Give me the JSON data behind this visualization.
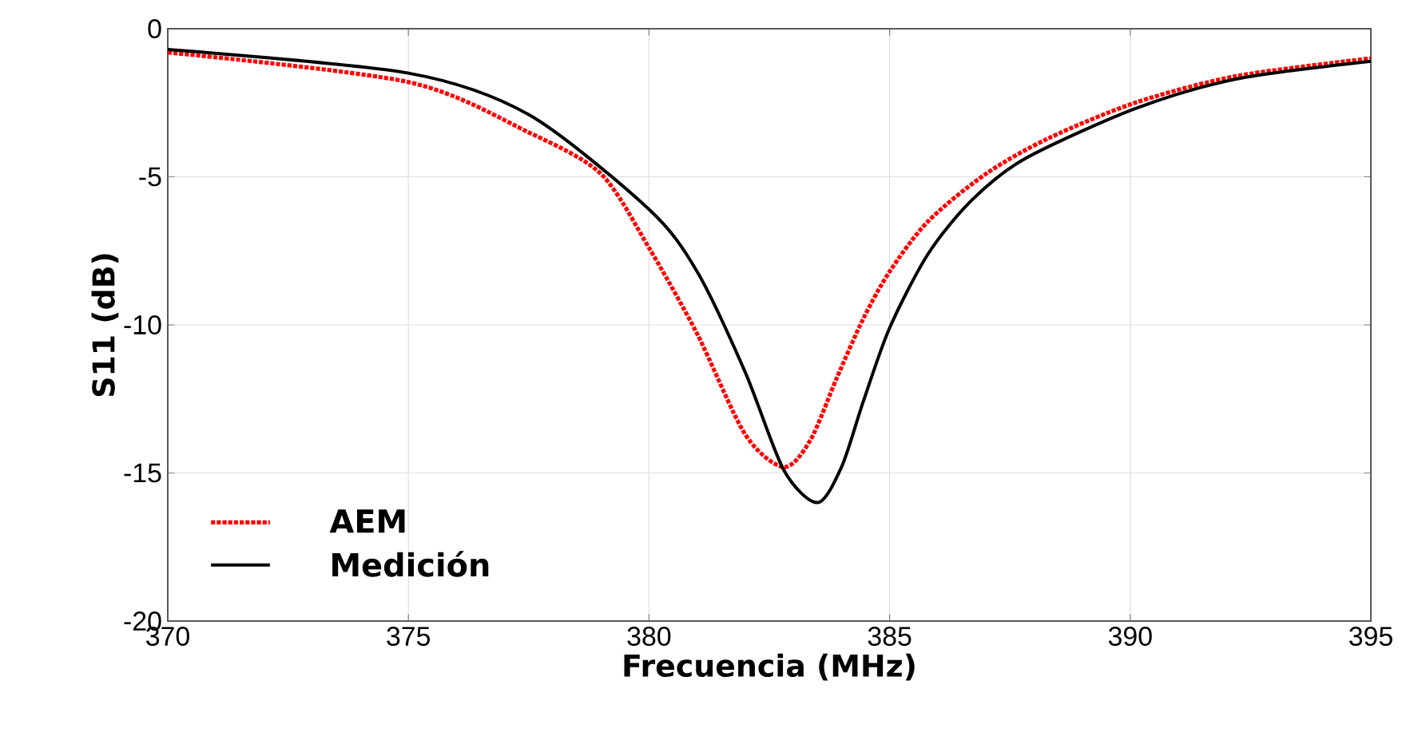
{
  "chart_data": {
    "type": "line",
    "xlabel": "Frecuencia (MHz)",
    "ylabel": "S11 (dB)",
    "xlim": [
      370,
      395
    ],
    "xticks": [
      370,
      375,
      380,
      385,
      390,
      395
    ],
    "ylim": [
      -20,
      0
    ],
    "yticks": [
      -20,
      -15,
      -10,
      -5,
      0
    ],
    "grid": true,
    "legend": "bottom left",
    "series": [
      {
        "name": "AEM",
        "color": "#ff0000",
        "line_style": "dotted",
        "x": [
          370,
          375,
          377.5,
          379,
          380,
          381,
          382,
          382.8,
          383.35,
          383.9,
          384.45,
          385,
          385.8,
          387,
          388.3,
          390.1,
          392.2,
          395
        ],
        "values": [
          -0.8,
          -1.8,
          -3.5,
          -4.9,
          -7.4,
          -10.3,
          -13.7,
          -14.8,
          -13.9,
          -11.8,
          -9.8,
          -8.2,
          -6.5,
          -4.9,
          -3.7,
          -2.5,
          -1.6,
          -1.0
        ]
      },
      {
        "name": "Medición",
        "color": "#000000",
        "line_style": "solid",
        "x": [
          370,
          375,
          377.5,
          380,
          381,
          382,
          382.8,
          383.5,
          384,
          384.45,
          385,
          385.8,
          386.7,
          387.8,
          390.1,
          392.2,
          395
        ],
        "values": [
          -0.7,
          -1.5,
          -2.9,
          -6.1,
          -8.2,
          -11.6,
          -14.9,
          -16.0,
          -14.8,
          -12.6,
          -10.1,
          -7.6,
          -5.8,
          -4.4,
          -2.7,
          -1.7,
          -1.1
        ]
      }
    ]
  }
}
